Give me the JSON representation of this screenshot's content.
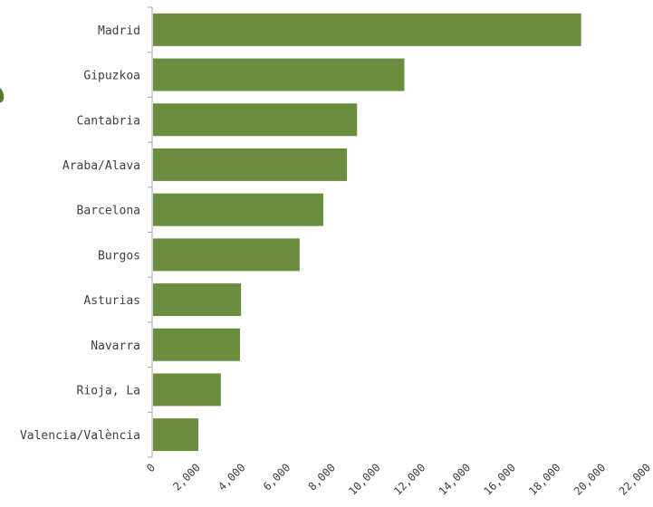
{
  "chart_data": {
    "type": "bar",
    "orientation": "horizontal",
    "categories": [
      "Madrid",
      "Gipuzkoa",
      "Cantabria",
      "Araba/Alava",
      "Barcelona",
      "Burgos",
      "Asturias",
      "Navarra",
      "Rioja, La",
      "Valencia/València"
    ],
    "values": [
      19050,
      11200,
      9100,
      8650,
      7600,
      6550,
      3950,
      3900,
      3050,
      2050
    ],
    "xlim": [
      0,
      22000
    ],
    "xticks": [
      0,
      2000,
      4000,
      6000,
      8000,
      10000,
      12000,
      14000,
      16000,
      18000,
      20000,
      22000
    ],
    "xtick_labels": [
      "0",
      "2,000",
      "4,000",
      "6,000",
      "8,000",
      "10,000",
      "12,000",
      "14,000",
      "16,000",
      "18,000",
      "20,000",
      "22,000"
    ],
    "bar_color": "#6b8e3e",
    "grid": false,
    "legend": "none"
  }
}
